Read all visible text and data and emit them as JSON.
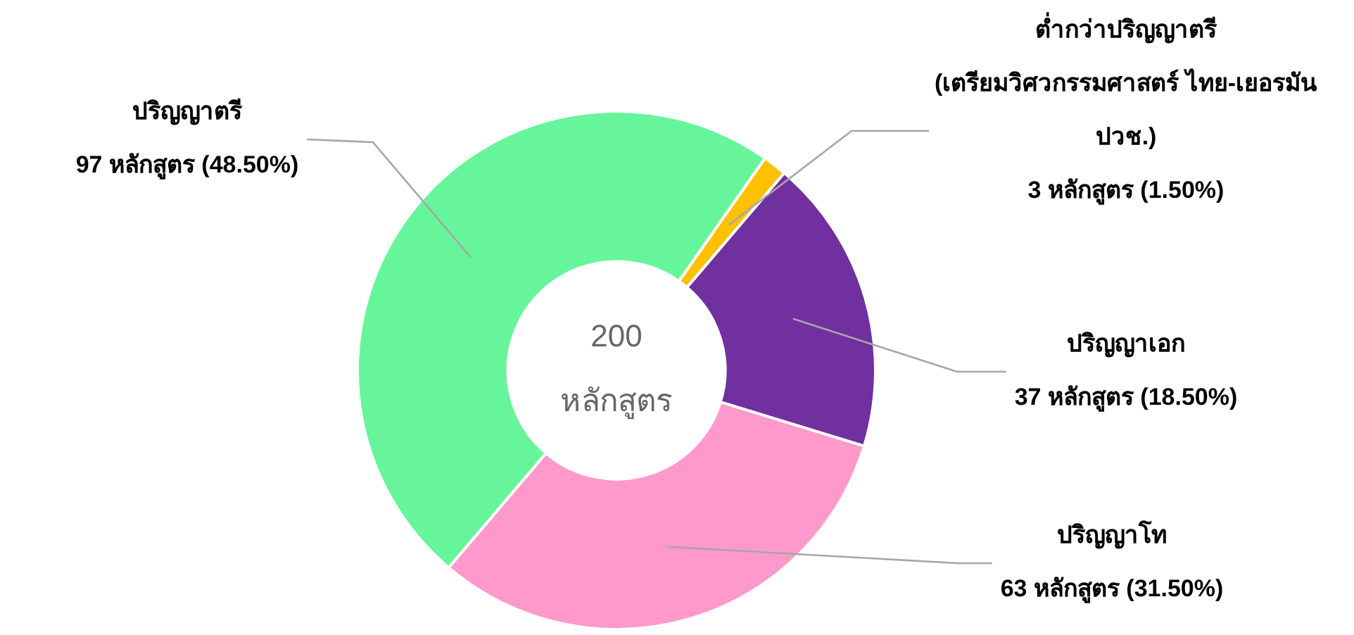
{
  "chart_data": {
    "type": "donut",
    "categories": [
      "ต่ำกว่าปริญญาตรี (เตรียมวิศวกรรมศาสตร์ ไทย-เยอรมัน ปวช.)",
      "ปริญญาเอก",
      "ปริญญาโท",
      "ปริญญาตรี"
    ],
    "values": [
      3,
      37,
      63,
      97
    ],
    "colors": [
      "#ffc000",
      "#7030a0",
      "#ff99cc",
      "#66f59a"
    ],
    "value_labels": [
      "3 หลักสูตร (1.50%)",
      "37 หลักสูตร (18.50%)",
      "63 หลักสูตร (31.50%)",
      "97 หลักสูตร (48.50%)"
    ],
    "annotations": [
      "200 หลักสูตร"
    ],
    "legend": false
  }
}
